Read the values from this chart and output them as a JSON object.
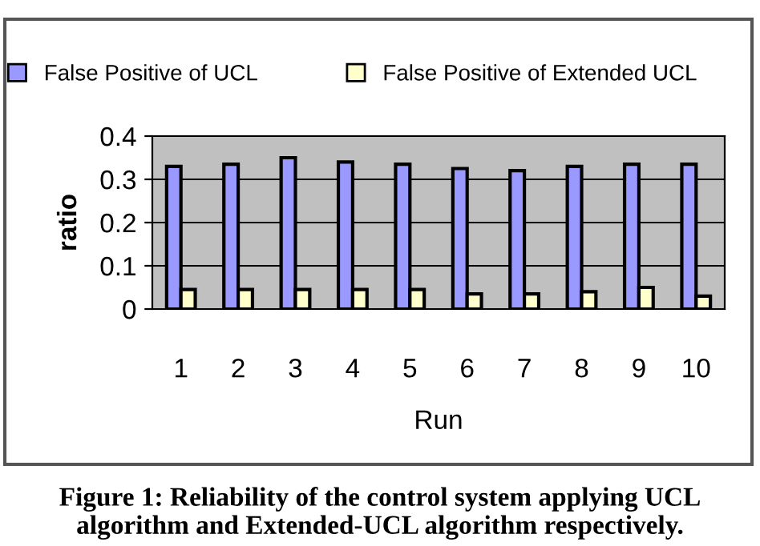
{
  "chart_data": {
    "type": "bar",
    "xlabel": "Run",
    "ylabel": "ratio",
    "categories": [
      "1",
      "2",
      "3",
      "4",
      "5",
      "6",
      "7",
      "8",
      "9",
      "10"
    ],
    "series": [
      {
        "name": "False Positive of UCL",
        "color": "#9999ff",
        "values": [
          0.33,
          0.335,
          0.35,
          0.34,
          0.335,
          0.325,
          0.32,
          0.33,
          0.335,
          0.335
        ]
      },
      {
        "name": "False Positive of Extended UCL",
        "color": "#ffffcc",
        "values": [
          0.045,
          0.045,
          0.045,
          0.045,
          0.045,
          0.035,
          0.035,
          0.04,
          0.05,
          0.03
        ]
      }
    ],
    "ylim": [
      0,
      0.4
    ],
    "yticks": [
      {
        "value": 0,
        "label": "0"
      },
      0.1,
      0.2,
      0.3,
      0.4
    ],
    "grid": "y",
    "legend": "top",
    "annotations": [
      "Figure 1: Reliability of the control system applying UCL algorithm and Extended-UCL algorithm respectively."
    ]
  }
}
